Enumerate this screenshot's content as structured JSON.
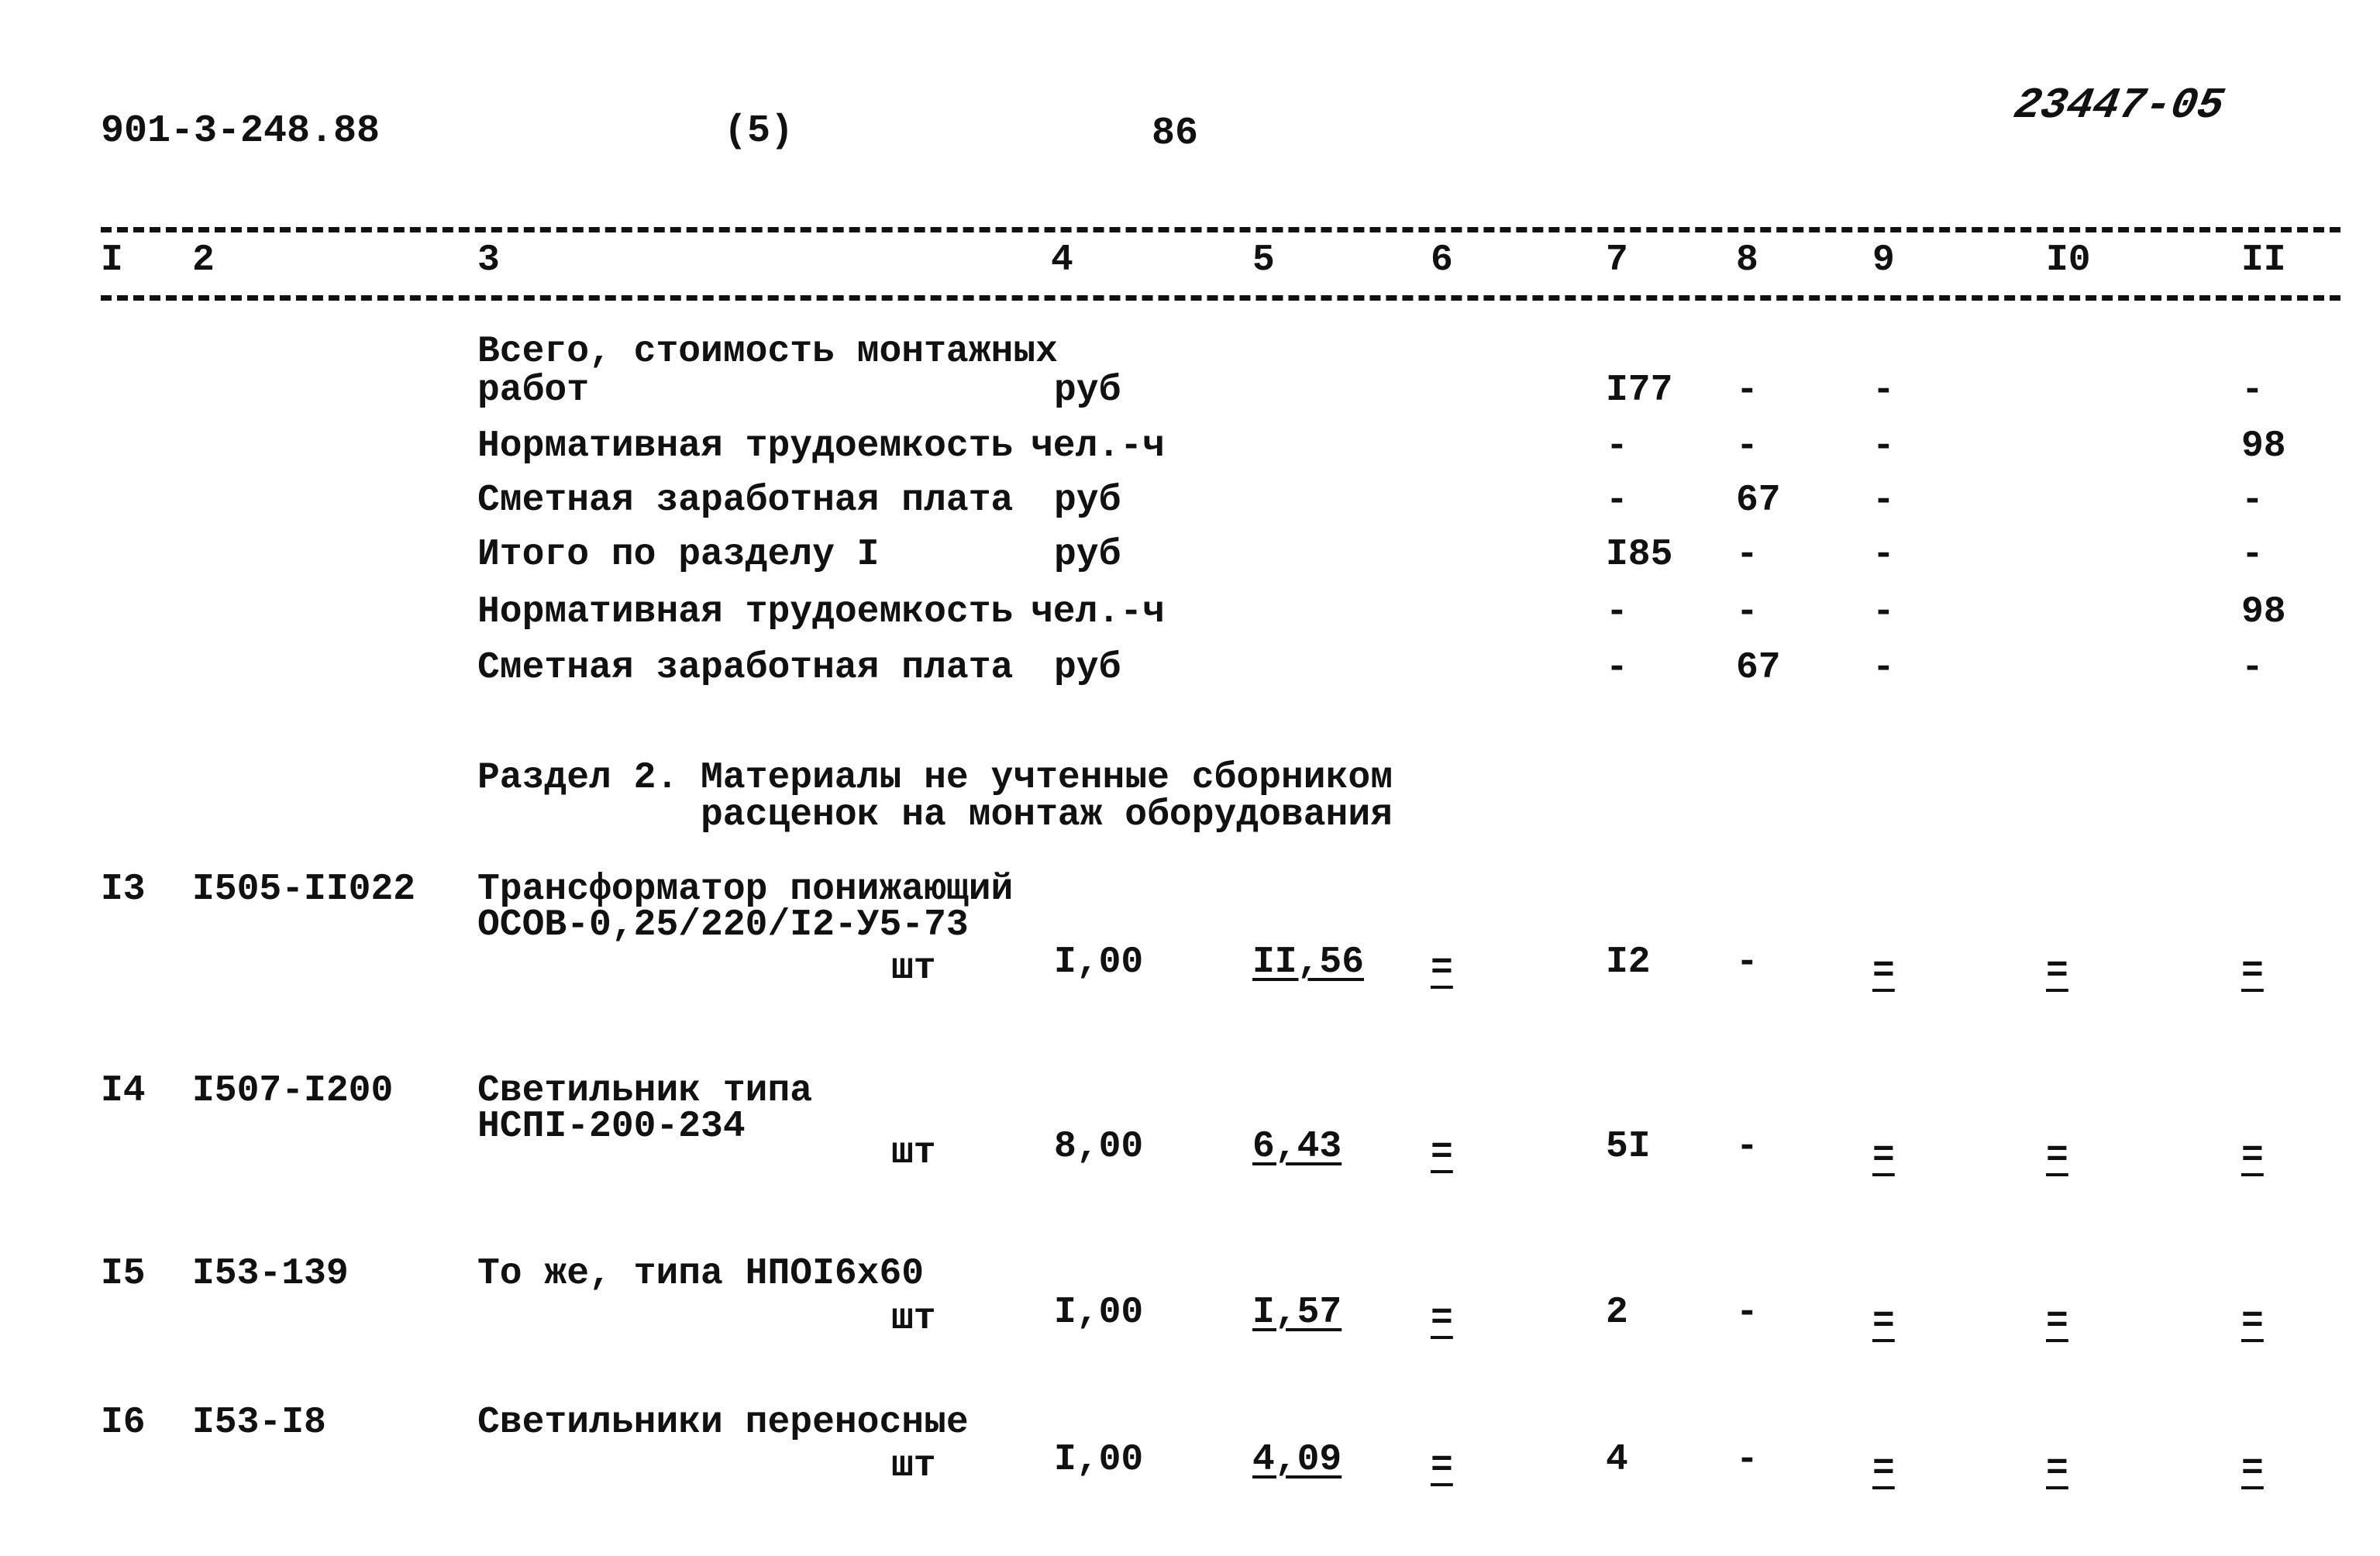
{
  "header": {
    "doc_number": "901-3-248.88",
    "part": "(5)",
    "page": "86",
    "archive_code": "23447-05"
  },
  "columns": [
    "I",
    "2",
    "3",
    "4",
    "5",
    "6",
    "7",
    "8",
    "9",
    "I0",
    "II"
  ],
  "summary_rows": [
    {
      "name": "Всего, стоимость монтажных",
      "name2": "работ",
      "unit": "руб",
      "c7": "I77",
      "c8": "-",
      "c9": "-",
      "c11": "-"
    },
    {
      "name": "Нормативная трудоемкость",
      "unit": "чел.-ч",
      "c7": "-",
      "c8": "-",
      "c9": "-",
      "c11": "98"
    },
    {
      "name": "Сметная заработная плата",
      "unit": "руб",
      "c7": "-",
      "c8": "67",
      "c9": "-",
      "c11": "-"
    },
    {
      "name": "Итого по разделу I",
      "unit": "руб",
      "c7": "I85",
      "c8": "-",
      "c9": "-",
      "c11": "-"
    },
    {
      "name": "Нормативная трудоемкость",
      "unit": "чел.-ч",
      "c7": "-",
      "c8": "-",
      "c9": "-",
      "c11": "98"
    },
    {
      "name": "Сметная заработная плата",
      "unit": "руб",
      "c7": "-",
      "c8": "67",
      "c9": "-",
      "c11": "-"
    }
  ],
  "section": {
    "line1": "Раздел 2. Материалы не учтенные сборником",
    "line2": "расценок на монтаж оборудования"
  },
  "items": [
    {
      "no": "I3",
      "code": "I505-II022",
      "desc1": "Трансформатор понижающий",
      "desc2": "ОСОВ-0,25/220/I2-У5-73",
      "unit": "шт",
      "qty": "I,00",
      "price": "II,56",
      "c6": "=",
      "c7": "I2",
      "c8": "-",
      "c9": "=",
      "c10": "=",
      "c11": "="
    },
    {
      "no": "I4",
      "code": "I507-I200",
      "desc1": "Светильник типа",
      "desc2": "НСПI-200-234",
      "unit": "шт",
      "qty": "8,00",
      "price": "6,43",
      "c6": "=",
      "c7": "5I",
      "c8": "-",
      "c9": "=",
      "c10": "=",
      "c11": "="
    },
    {
      "no": "I5",
      "code": "I53-139",
      "desc1": "То же, типа НПОI6х60",
      "desc2": "",
      "unit": "шт",
      "qty": "I,00",
      "price": "I,57",
      "c6": "=",
      "c7": "2",
      "c8": "-",
      "c9": "=",
      "c10": "=",
      "c11": "="
    },
    {
      "no": "I6",
      "code": "I53-I8",
      "desc1": "Светильники переносные",
      "desc2": "",
      "unit": "шт",
      "qty": "I,00",
      "price": "4,09",
      "c6": "=",
      "c7": "4",
      "c8": "-",
      "c9": "=",
      "c10": "=",
      "c11": "="
    }
  ]
}
